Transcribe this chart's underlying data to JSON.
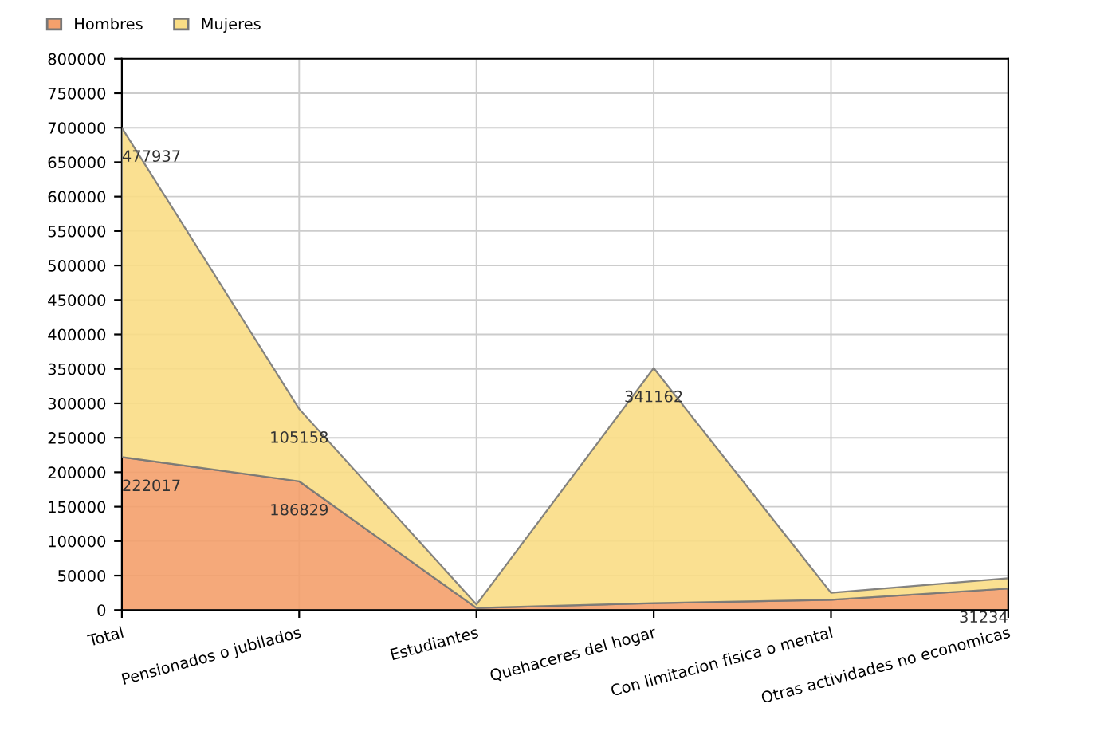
{
  "chart_data": {
    "type": "area",
    "stacked": true,
    "categories": [
      "Total",
      "Pensionados o jubilados",
      "Estudiantes",
      "Quehaceres del hogar",
      "Con limitacion fisica o mental",
      "Otras actividades no economicas"
    ],
    "series": [
      {
        "name": "Hombres",
        "color": "#f4a06c",
        "values": [
          222017,
          186829,
          3000,
          10000,
          15000,
          31234
        ],
        "value_labels": [
          "222017",
          "186829",
          null,
          null,
          null,
          "31234"
        ]
      },
      {
        "name": "Mujeres",
        "color": "#f9dd85",
        "values": [
          477937,
          105158,
          5000,
          341162,
          10000,
          15000
        ],
        "value_labels": [
          "477937",
          "105158",
          null,
          "341162",
          null,
          null
        ]
      }
    ],
    "ylim": [
      0,
      800000
    ],
    "yticks": [
      0,
      50000,
      100000,
      150000,
      200000,
      250000,
      300000,
      350000,
      400000,
      450000,
      500000,
      550000,
      600000,
      650000,
      700000,
      750000,
      800000
    ],
    "grid": true,
    "legend": "top left"
  }
}
